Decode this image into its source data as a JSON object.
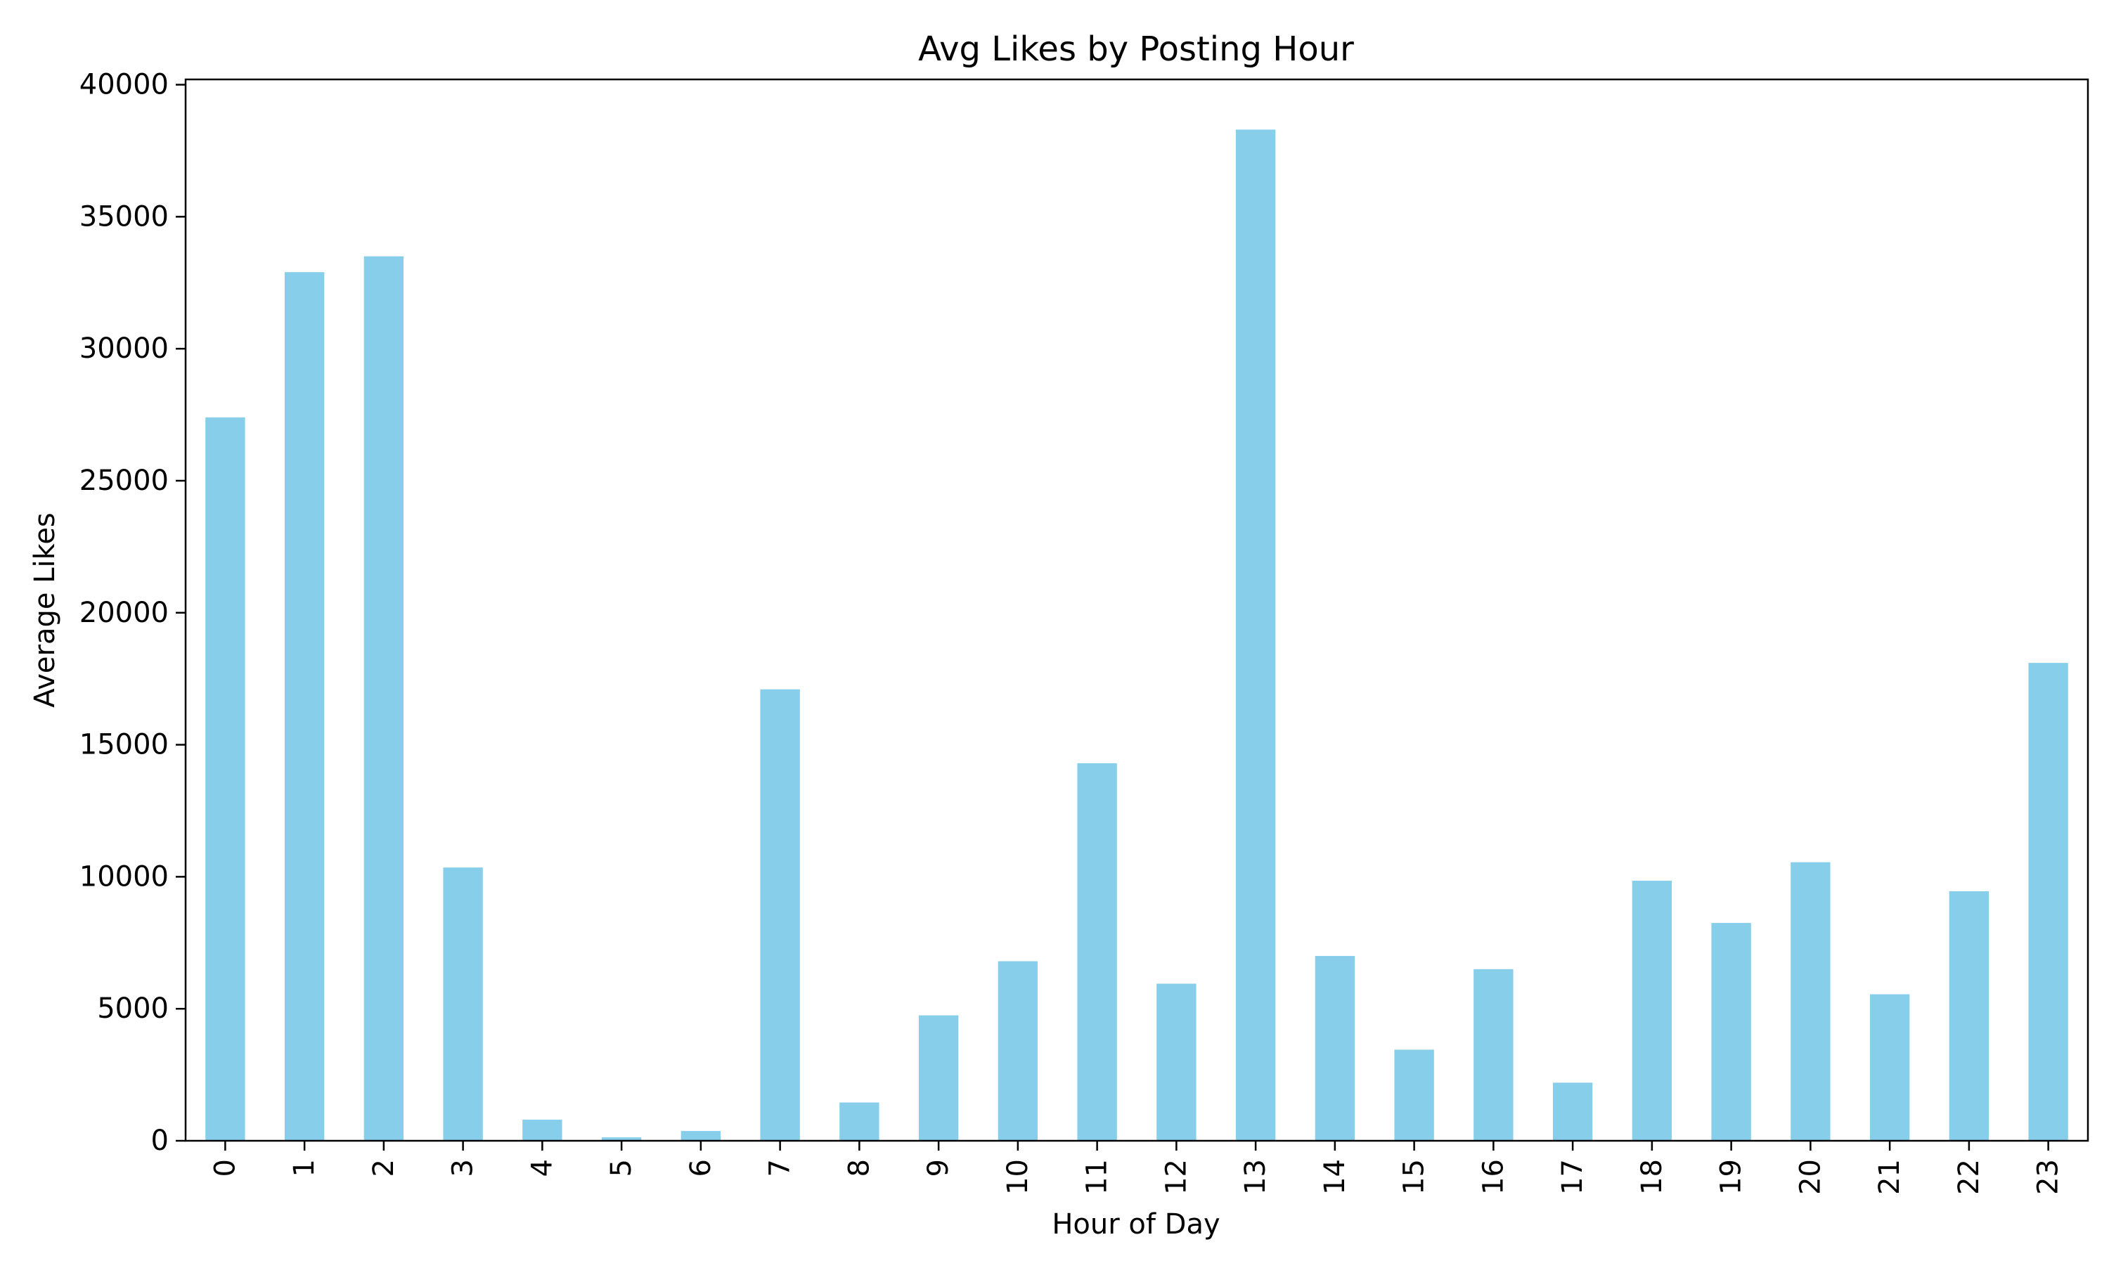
{
  "chart_data": {
    "type": "bar",
    "title": "Avg Likes by Posting Hour",
    "xlabel": "Hour of Day",
    "ylabel": "Average Likes",
    "categories": [
      "0",
      "1",
      "2",
      "3",
      "4",
      "5",
      "6",
      "7",
      "8",
      "9",
      "10",
      "11",
      "12",
      "13",
      "14",
      "15",
      "16",
      "17",
      "18",
      "19",
      "20",
      "21",
      "22",
      "23"
    ],
    "values": [
      27400,
      32900,
      33500,
      10350,
      800,
      130,
      370,
      17100,
      1450,
      4750,
      6800,
      14300,
      5950,
      38300,
      7000,
      3450,
      6500,
      2200,
      9850,
      8250,
      10550,
      5550,
      9450,
      18100
    ],
    "yticks": [
      0,
      5000,
      10000,
      15000,
      20000,
      25000,
      30000,
      35000,
      40000
    ],
    "ylim": [
      0,
      40200
    ],
    "bar_color": "#87ceeb",
    "grid": false,
    "legend": "none"
  }
}
